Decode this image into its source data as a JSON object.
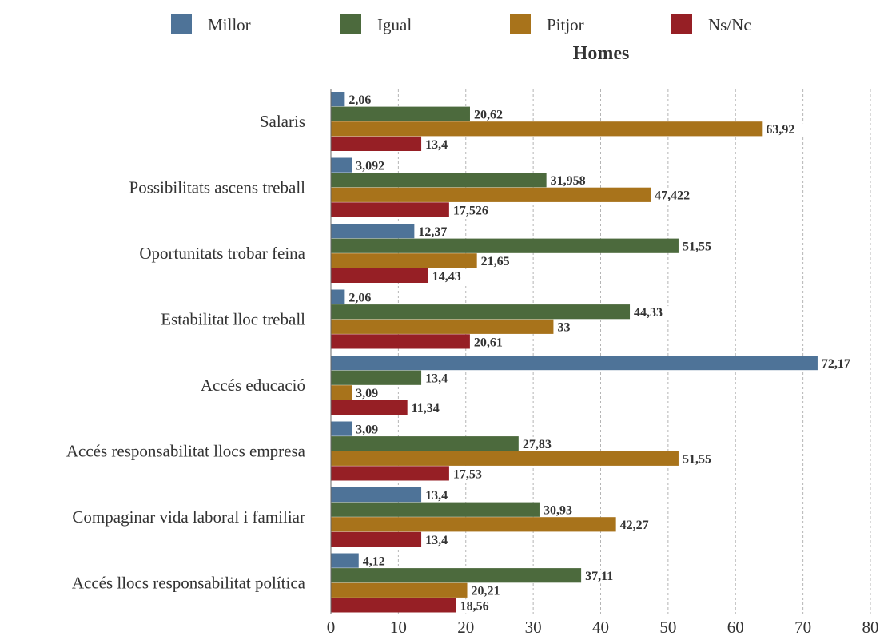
{
  "chart_data": {
    "type": "bar",
    "orientation": "horizontal",
    "title": "Homes",
    "categories": [
      "Salaris",
      "Possibilitats ascens treball",
      "Oportunitats trobar feina",
      "Estabilitat lloc treball",
      "Accés educació",
      "Accés responsabilitat llocs empresa",
      "Compaginar vida laboral i familiar",
      "Accés llocs responsabilitat política"
    ],
    "series": [
      {
        "name": "Millor",
        "color": "#4e7398",
        "values": [
          2.06,
          3.092,
          12.37,
          2.06,
          72.17,
          3.09,
          13.4,
          4.12
        ],
        "labels": [
          "2,06",
          "3,092",
          "12,37",
          "2,06",
          "72,17",
          "3,09",
          "13,4",
          "4,12"
        ]
      },
      {
        "name": "Igual",
        "color": "#4c6a3d",
        "values": [
          20.62,
          31.958,
          51.55,
          44.33,
          13.4,
          27.83,
          30.93,
          37.11
        ],
        "labels": [
          "20,62",
          "31,958",
          "51,55",
          "44,33",
          "13,4",
          "27,83",
          "30,93",
          "37,11"
        ]
      },
      {
        "name": "Pitjor",
        "color": "#a8731b",
        "values": [
          63.92,
          47.422,
          21.65,
          33,
          3.09,
          51.55,
          42.27,
          20.21
        ],
        "labels": [
          "63,92",
          "47,422",
          "21,65",
          "33",
          "3,09",
          "51,55",
          "42,27",
          "20,21"
        ]
      },
      {
        "name": "Ns/Nc",
        "color": "#961f25",
        "values": [
          13.4,
          17.526,
          14.43,
          20.61,
          11.34,
          17.53,
          13.4,
          18.56
        ],
        "labels": [
          "13,4",
          "17,526",
          "14,43",
          "20,61",
          "11,34",
          "17,53",
          "13,4",
          "18,56"
        ]
      }
    ],
    "xlim": [
      0,
      80
    ],
    "xticks": [
      0,
      10,
      20,
      30,
      40,
      50,
      60,
      70,
      80
    ],
    "xtick_labels": [
      "0",
      "10",
      "20",
      "30",
      "40",
      "50",
      "60",
      "70",
      "80"
    ],
    "grid": "vertical-dashed",
    "legend_position": "top"
  }
}
